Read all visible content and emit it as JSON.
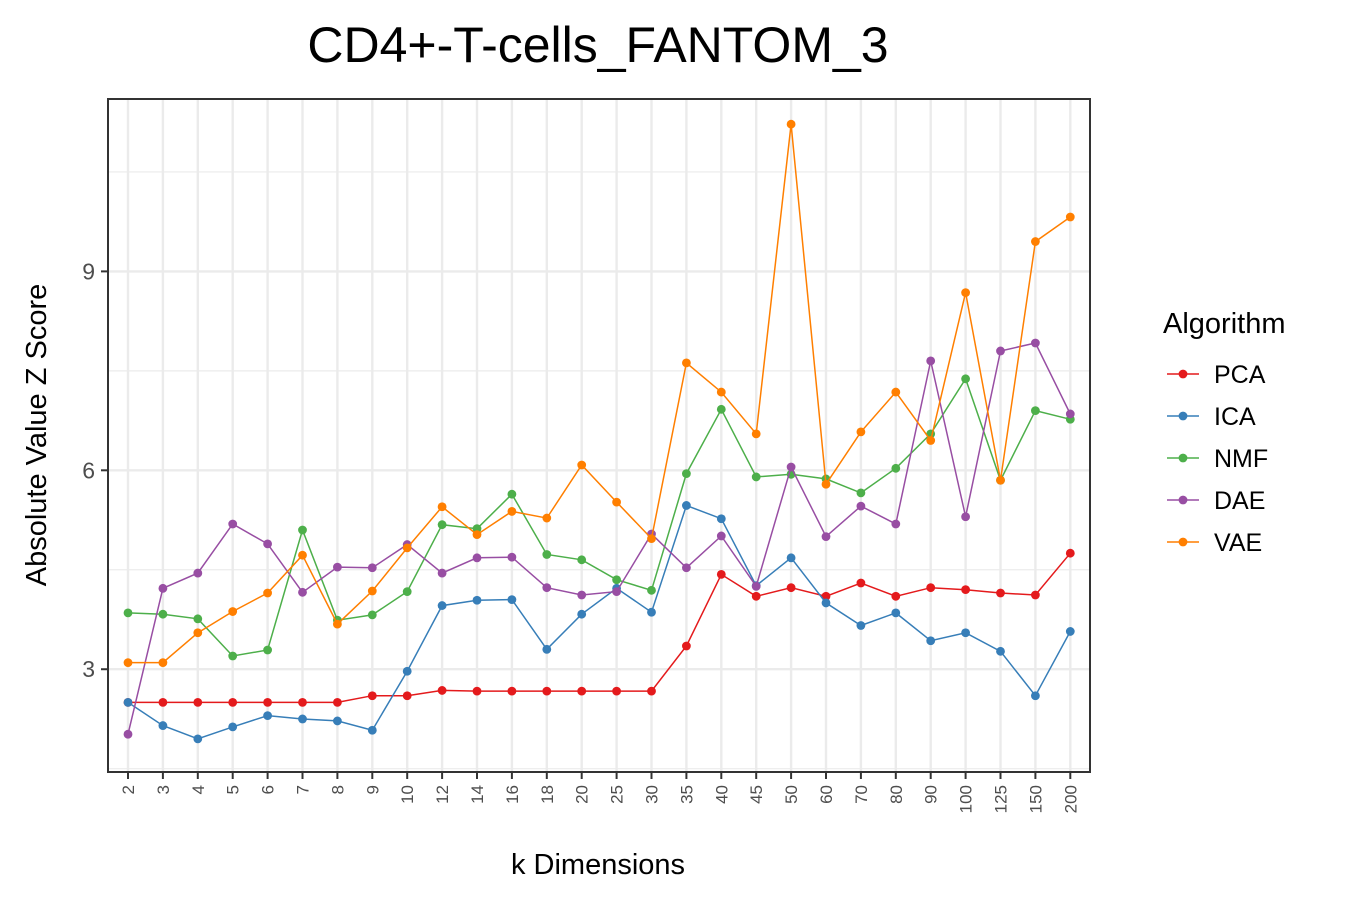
{
  "chart_data": {
    "type": "line",
    "title": "CD4+-T-cells_FANTOM_3",
    "xlabel": "k Dimensions",
    "ylabel": "Absolute Value Z Score",
    "legend_title": "Algorithm",
    "legend_position": "right",
    "grid": true,
    "categories": [
      "2",
      "3",
      "4",
      "5",
      "6",
      "7",
      "8",
      "9",
      "10",
      "12",
      "14",
      "16",
      "18",
      "20",
      "25",
      "30",
      "35",
      "40",
      "45",
      "50",
      "60",
      "70",
      "80",
      "90",
      "100",
      "125",
      "150",
      "200"
    ],
    "yticks": [
      3,
      6,
      9
    ],
    "ylim": [
      1.45,
      11.6
    ],
    "series": [
      {
        "name": "PCA",
        "color": "#e41a1c",
        "values": [
          2.5,
          2.5,
          2.5,
          2.5,
          2.5,
          2.5,
          2.5,
          2.6,
          2.6,
          2.68,
          2.67,
          2.67,
          2.67,
          2.67,
          2.67,
          2.67,
          3.35,
          4.43,
          4.1,
          4.23,
          4.1,
          4.3,
          4.1,
          4.23,
          4.2,
          4.15,
          4.12,
          4.75
        ]
      },
      {
        "name": "ICA",
        "color": "#377eb8",
        "values": [
          2.5,
          2.15,
          1.95,
          2.13,
          2.3,
          2.25,
          2.22,
          2.08,
          2.97,
          3.96,
          4.04,
          4.05,
          3.3,
          3.83,
          4.22,
          3.86,
          5.47,
          5.27,
          4.26,
          4.68,
          4.0,
          3.66,
          3.85,
          3.43,
          3.55,
          3.27,
          2.6,
          3.57
        ]
      },
      {
        "name": "NMF",
        "color": "#4daf4a",
        "values": [
          3.85,
          3.83,
          3.76,
          3.2,
          3.29,
          5.1,
          3.74,
          3.82,
          4.17,
          5.18,
          5.12,
          5.64,
          4.73,
          4.65,
          4.35,
          4.19,
          5.95,
          6.92,
          5.9,
          5.94,
          5.87,
          5.66,
          6.03,
          6.55,
          7.38,
          5.85,
          6.9,
          6.77
        ]
      },
      {
        "name": "DAE",
        "color": "#984ea3",
        "values": [
          2.02,
          4.22,
          4.45,
          5.19,
          4.89,
          4.16,
          4.54,
          4.53,
          4.88,
          4.45,
          4.68,
          4.69,
          4.23,
          4.12,
          4.17,
          5.04,
          4.53,
          5.01,
          4.25,
          6.05,
          5.0,
          5.46,
          5.19,
          7.65,
          5.3,
          7.8,
          7.92,
          6.85
        ]
      },
      {
        "name": "VAE",
        "color": "#ff7f00",
        "values": [
          3.1,
          3.1,
          3.55,
          3.87,
          4.15,
          4.72,
          3.68,
          4.18,
          4.83,
          5.45,
          5.03,
          5.38,
          5.28,
          6.08,
          5.52,
          4.97,
          7.62,
          7.18,
          6.55,
          11.22,
          5.79,
          6.58,
          7.18,
          6.45,
          8.68,
          5.85,
          9.45,
          9.82
        ]
      }
    ]
  }
}
